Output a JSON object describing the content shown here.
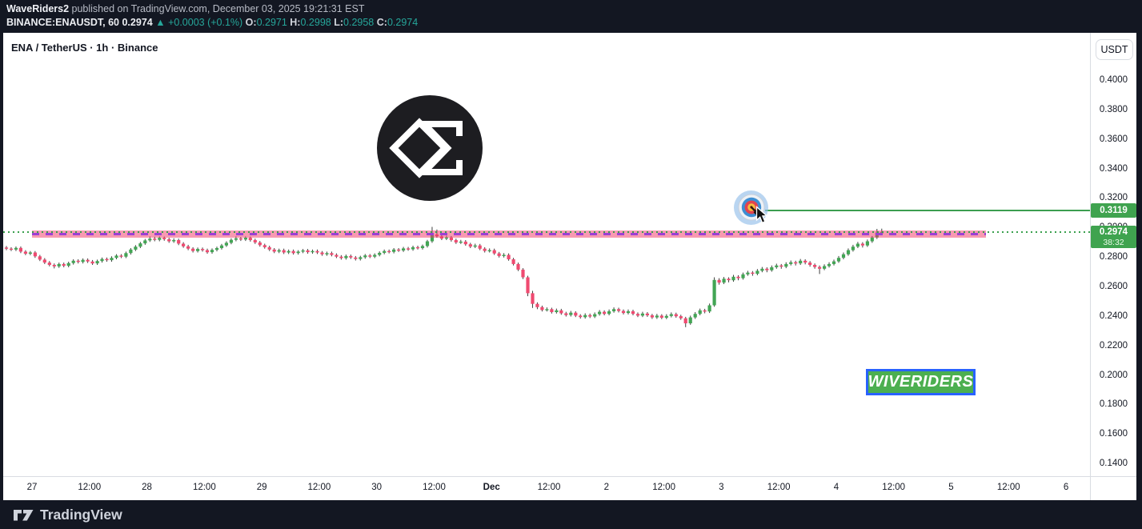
{
  "header": {
    "publisher": "WaveRiders2",
    "publish_info": " published on TradingView.com, December 03, 2025 19:21:31 EST",
    "symbol_line": {
      "symbol": "BINANCE:ENAUSDT, 60",
      "last_price": "0.2974",
      "change_arrow": "▲",
      "change": "+0.0003 (+0.1%)",
      "o_label": "O:",
      "o_value": "0.2971",
      "h_label": "H:",
      "h_value": "0.2998",
      "l_label": "L:",
      "l_value": "0.2958",
      "c_label": "C:",
      "c_value": "0.2974"
    }
  },
  "chart": {
    "title": "ENA / TetherUS · 1h · Binance",
    "watermark_badge": "WIVERIDERS"
  },
  "chart_data": {
    "type": "candlestick",
    "symbol": "ENA/USDT",
    "timeframe": "1h",
    "exchange": "Binance",
    "ylim": [
      0.13,
      0.41
    ],
    "grid": false,
    "colors": {
      "up": "#42a554",
      "down": "#ef4a70",
      "wick": "#3f3f3f"
    },
    "price_axis": {
      "currency": "USDT",
      "ticks": [
        "0.4000",
        "0.3800",
        "0.3600",
        "0.3400",
        "0.3200",
        "0.3000",
        "0.2800",
        "0.2600",
        "0.2400",
        "0.2200",
        "0.2000",
        "0.1800",
        "0.1600",
        "0.1400"
      ],
      "target_badge": "0.3119",
      "price_badge": "0.2974",
      "countdown": "38:32"
    },
    "time_axis": {
      "labels": [
        "27",
        "12:00",
        "28",
        "12:00",
        "29",
        "12:00",
        "30",
        "12:00",
        "Dec",
        "12:00",
        "2",
        "12:00",
        "3",
        "12:00",
        "4",
        "12:00",
        "5",
        "12:00",
        "6"
      ]
    },
    "overlays": {
      "resistance_zone": {
        "from": 0.2937,
        "to": 0.2983,
        "fill": "rgba(242,54,99,0.5)",
        "centerline": 0.296,
        "centerline_color": "#9c3fd4",
        "centerline_style": "dashed"
      },
      "target_line": {
        "price": 0.3119,
        "color": "#3c9e50",
        "style": "solid"
      },
      "last_price_line": {
        "price": 0.2974,
        "color": "#3aa04e",
        "style": "dotted"
      },
      "target_marker": {
        "icon": "dart-target-emoji",
        "price": 0.3119
      }
    },
    "candles": [
      [
        0.287,
        0.288,
        0.2852,
        0.2862
      ],
      [
        0.2862,
        0.2872,
        0.2846,
        0.2856
      ],
      [
        0.2856,
        0.2877,
        0.2846,
        0.2867
      ],
      [
        0.2867,
        0.2877,
        0.2832,
        0.2842
      ],
      [
        0.2842,
        0.2852,
        0.2818,
        0.2828
      ],
      [
        0.2828,
        0.2846,
        0.2818,
        0.2836
      ],
      [
        0.2836,
        0.2846,
        0.28,
        0.281
      ],
      [
        0.281,
        0.282,
        0.2778,
        0.2788
      ],
      [
        0.2788,
        0.2798,
        0.2758,
        0.2768
      ],
      [
        0.2768,
        0.2778,
        0.2742,
        0.2752
      ],
      [
        0.2752,
        0.2762,
        0.2728,
        0.2742
      ],
      [
        0.2742,
        0.2768,
        0.2732,
        0.2758
      ],
      [
        0.2758,
        0.2768,
        0.2736,
        0.2746
      ],
      [
        0.2746,
        0.2774,
        0.2736,
        0.2764
      ],
      [
        0.2764,
        0.279,
        0.2754,
        0.278
      ],
      [
        0.278,
        0.279,
        0.2762,
        0.2772
      ],
      [
        0.2772,
        0.2796,
        0.2762,
        0.2786
      ],
      [
        0.2786,
        0.2796,
        0.2765,
        0.2775
      ],
      [
        0.2775,
        0.2785,
        0.2752,
        0.2762
      ],
      [
        0.2762,
        0.2788,
        0.2752,
        0.2778
      ],
      [
        0.2778,
        0.2802,
        0.2768,
        0.2792
      ],
      [
        0.2792,
        0.2802,
        0.2774,
        0.2784
      ],
      [
        0.2784,
        0.281,
        0.2774,
        0.28
      ],
      [
        0.28,
        0.2825,
        0.279,
        0.2815
      ],
      [
        0.2815,
        0.2825,
        0.2798,
        0.2808
      ],
      [
        0.2808,
        0.2842,
        0.2798,
        0.2832
      ],
      [
        0.2832,
        0.2866,
        0.2822,
        0.2856
      ],
      [
        0.2856,
        0.2886,
        0.2846,
        0.2876
      ],
      [
        0.2876,
        0.2908,
        0.2866,
        0.2898
      ],
      [
        0.2898,
        0.2928,
        0.2888,
        0.2918
      ],
      [
        0.2918,
        0.2945,
        0.2908,
        0.293
      ],
      [
        0.293,
        0.2943,
        0.2912,
        0.2922
      ],
      [
        0.2922,
        0.2945,
        0.2912,
        0.2936
      ],
      [
        0.2936,
        0.2944,
        0.2916,
        0.2926
      ],
      [
        0.2926,
        0.2936,
        0.2902,
        0.2912
      ],
      [
        0.2912,
        0.2932,
        0.2902,
        0.292
      ],
      [
        0.292,
        0.293,
        0.2886,
        0.2896
      ],
      [
        0.2896,
        0.2906,
        0.2868,
        0.2878
      ],
      [
        0.2878,
        0.2888,
        0.2852,
        0.2862
      ],
      [
        0.2862,
        0.2872,
        0.2836,
        0.2846
      ],
      [
        0.2846,
        0.287,
        0.2836,
        0.286
      ],
      [
        0.286,
        0.287,
        0.2842,
        0.2852
      ],
      [
        0.2852,
        0.2862,
        0.2828,
        0.2838
      ],
      [
        0.2838,
        0.2864,
        0.2828,
        0.2854
      ],
      [
        0.2854,
        0.2876,
        0.2844,
        0.2866
      ],
      [
        0.2866,
        0.2894,
        0.2856,
        0.2884
      ],
      [
        0.2884,
        0.2912,
        0.2874,
        0.2902
      ],
      [
        0.2902,
        0.2932,
        0.2892,
        0.2922
      ],
      [
        0.2922,
        0.2945,
        0.2912,
        0.2932
      ],
      [
        0.2932,
        0.2942,
        0.2914,
        0.2924
      ],
      [
        0.2924,
        0.2945,
        0.2914,
        0.2936
      ],
      [
        0.2936,
        0.2944,
        0.291,
        0.292
      ],
      [
        0.292,
        0.293,
        0.2894,
        0.2904
      ],
      [
        0.2904,
        0.2914,
        0.2876,
        0.2886
      ],
      [
        0.2886,
        0.2896,
        0.2862,
        0.2872
      ],
      [
        0.2872,
        0.2882,
        0.2846,
        0.2856
      ],
      [
        0.2856,
        0.2866,
        0.2832,
        0.2842
      ],
      [
        0.2842,
        0.2862,
        0.2832,
        0.2852
      ],
      [
        0.2852,
        0.2862,
        0.2826,
        0.2836
      ],
      [
        0.2836,
        0.2856,
        0.2826,
        0.2846
      ],
      [
        0.2846,
        0.2856,
        0.2822,
        0.2832
      ],
      [
        0.2832,
        0.2852,
        0.2822,
        0.2842
      ],
      [
        0.2842,
        0.286,
        0.2832,
        0.285
      ],
      [
        0.285,
        0.286,
        0.2828,
        0.2838
      ],
      [
        0.2838,
        0.2856,
        0.2828,
        0.2846
      ],
      [
        0.2846,
        0.2856,
        0.2826,
        0.2836
      ],
      [
        0.2836,
        0.2846,
        0.2814,
        0.2824
      ],
      [
        0.2824,
        0.2842,
        0.2814,
        0.2832
      ],
      [
        0.2832,
        0.2842,
        0.281,
        0.282
      ],
      [
        0.282,
        0.283,
        0.2798,
        0.2808
      ],
      [
        0.2808,
        0.2818,
        0.2788,
        0.2798
      ],
      [
        0.2798,
        0.2822,
        0.2788,
        0.2812
      ],
      [
        0.2812,
        0.2822,
        0.2792,
        0.2802
      ],
      [
        0.2802,
        0.2812,
        0.2782,
        0.2792
      ],
      [
        0.2792,
        0.2814,
        0.2782,
        0.2804
      ],
      [
        0.2804,
        0.2826,
        0.2794,
        0.2816
      ],
      [
        0.2816,
        0.2826,
        0.2798,
        0.2808
      ],
      [
        0.2808,
        0.283,
        0.2798,
        0.282
      ],
      [
        0.282,
        0.2844,
        0.281,
        0.2834
      ],
      [
        0.2834,
        0.2856,
        0.2824,
        0.2846
      ],
      [
        0.2846,
        0.2856,
        0.283,
        0.284
      ],
      [
        0.284,
        0.2866,
        0.283,
        0.2856
      ],
      [
        0.2856,
        0.2866,
        0.284,
        0.285
      ],
      [
        0.285,
        0.2874,
        0.284,
        0.2864
      ],
      [
        0.2864,
        0.2874,
        0.2848,
        0.2858
      ],
      [
        0.2858,
        0.2882,
        0.2848,
        0.2872
      ],
      [
        0.2872,
        0.2882,
        0.2856,
        0.2866
      ],
      [
        0.2866,
        0.289,
        0.2856,
        0.288
      ],
      [
        0.288,
        0.2922,
        0.287,
        0.2912
      ],
      [
        0.2912,
        0.301,
        0.2902,
        0.2958
      ],
      [
        0.2958,
        0.2992,
        0.2936,
        0.2946
      ],
      [
        0.2946,
        0.2958,
        0.292,
        0.293
      ],
      [
        0.293,
        0.295,
        0.292,
        0.2938
      ],
      [
        0.2938,
        0.2948,
        0.291,
        0.292
      ],
      [
        0.292,
        0.293,
        0.2894,
        0.2904
      ],
      [
        0.2904,
        0.2922,
        0.2894,
        0.291
      ],
      [
        0.291,
        0.292,
        0.2882,
        0.2892
      ],
      [
        0.2892,
        0.2902,
        0.2866,
        0.2876
      ],
      [
        0.2876,
        0.2896,
        0.2866,
        0.2884
      ],
      [
        0.2884,
        0.2894,
        0.2852,
        0.2862
      ],
      [
        0.2862,
        0.2872,
        0.2836,
        0.2846
      ],
      [
        0.2846,
        0.2864,
        0.2836,
        0.2852
      ],
      [
        0.2852,
        0.2862,
        0.282,
        0.283
      ],
      [
        0.283,
        0.284,
        0.2802,
        0.2812
      ],
      [
        0.2812,
        0.2832,
        0.2802,
        0.282
      ],
      [
        0.282,
        0.283,
        0.278,
        0.279
      ],
      [
        0.279,
        0.28,
        0.2748,
        0.2758
      ],
      [
        0.2758,
        0.2768,
        0.271,
        0.272
      ],
      [
        0.272,
        0.273,
        0.2656,
        0.2668
      ],
      [
        0.2668,
        0.2678,
        0.254,
        0.256
      ],
      [
        0.256,
        0.2576,
        0.246,
        0.2488
      ],
      [
        0.2488,
        0.2498,
        0.2452,
        0.2466
      ],
      [
        0.2466,
        0.2476,
        0.2436,
        0.2446
      ],
      [
        0.2446,
        0.2464,
        0.2436,
        0.2452
      ],
      [
        0.2452,
        0.2462,
        0.2422,
        0.2432
      ],
      [
        0.2432,
        0.2456,
        0.2422,
        0.2444
      ],
      [
        0.2444,
        0.2454,
        0.2414,
        0.2424
      ],
      [
        0.2424,
        0.2434,
        0.2402,
        0.2412
      ],
      [
        0.2412,
        0.244,
        0.2402,
        0.2428
      ],
      [
        0.2428,
        0.2438,
        0.2398,
        0.2408
      ],
      [
        0.2408,
        0.2418,
        0.2388,
        0.2398
      ],
      [
        0.2398,
        0.2424,
        0.2388,
        0.2412
      ],
      [
        0.2412,
        0.2422,
        0.2392,
        0.2402
      ],
      [
        0.2402,
        0.243,
        0.2392,
        0.2418
      ],
      [
        0.2418,
        0.2446,
        0.2408,
        0.2434
      ],
      [
        0.2434,
        0.2444,
        0.241,
        0.242
      ],
      [
        0.242,
        0.245,
        0.241,
        0.2438
      ],
      [
        0.2438,
        0.2464,
        0.2428,
        0.2452
      ],
      [
        0.2452,
        0.2462,
        0.243,
        0.244
      ],
      [
        0.244,
        0.245,
        0.2416,
        0.2426
      ],
      [
        0.2426,
        0.245,
        0.2416,
        0.2438
      ],
      [
        0.2438,
        0.2448,
        0.241,
        0.242
      ],
      [
        0.242,
        0.243,
        0.2398,
        0.2408
      ],
      [
        0.2408,
        0.2434,
        0.2398,
        0.2422
      ],
      [
        0.2422,
        0.2432,
        0.24,
        0.241
      ],
      [
        0.241,
        0.242,
        0.2386,
        0.2396
      ],
      [
        0.2396,
        0.242,
        0.2386,
        0.2408
      ],
      [
        0.2408,
        0.2418,
        0.2384,
        0.2394
      ],
      [
        0.2394,
        0.2418,
        0.2384,
        0.2406
      ],
      [
        0.2406,
        0.243,
        0.2396,
        0.2418
      ],
      [
        0.2418,
        0.2428,
        0.2394,
        0.2404
      ],
      [
        0.2404,
        0.2414,
        0.238,
        0.239
      ],
      [
        0.239,
        0.24,
        0.233,
        0.2356
      ],
      [
        0.2356,
        0.2408,
        0.2346,
        0.2396
      ],
      [
        0.2396,
        0.2432,
        0.2386,
        0.242
      ],
      [
        0.242,
        0.2456,
        0.241,
        0.2444
      ],
      [
        0.2444,
        0.2454,
        0.2424,
        0.2436
      ],
      [
        0.2436,
        0.249,
        0.2426,
        0.2478
      ],
      [
        0.2478,
        0.2668,
        0.2468,
        0.265
      ],
      [
        0.265,
        0.2662,
        0.2618,
        0.2632
      ],
      [
        0.2632,
        0.267,
        0.2622,
        0.2658
      ],
      [
        0.2658,
        0.2668,
        0.2634,
        0.2648
      ],
      [
        0.2648,
        0.2684,
        0.2638,
        0.2672
      ],
      [
        0.2672,
        0.2682,
        0.2648,
        0.2662
      ],
      [
        0.2662,
        0.27,
        0.2652,
        0.2688
      ],
      [
        0.2688,
        0.2712,
        0.2678,
        0.27
      ],
      [
        0.27,
        0.271,
        0.2678,
        0.2692
      ],
      [
        0.2692,
        0.2724,
        0.2682,
        0.2712
      ],
      [
        0.2712,
        0.2738,
        0.2702,
        0.2726
      ],
      [
        0.2726,
        0.2736,
        0.2702,
        0.2716
      ],
      [
        0.2716,
        0.2748,
        0.2706,
        0.2736
      ],
      [
        0.2736,
        0.276,
        0.2726,
        0.2748
      ],
      [
        0.2748,
        0.2758,
        0.2726,
        0.274
      ],
      [
        0.274,
        0.277,
        0.273,
        0.2758
      ],
      [
        0.2758,
        0.2782,
        0.2748,
        0.277
      ],
      [
        0.277,
        0.278,
        0.2748,
        0.2762
      ],
      [
        0.2762,
        0.2792,
        0.2752,
        0.278
      ],
      [
        0.278,
        0.279,
        0.2756,
        0.2768
      ],
      [
        0.2768,
        0.2778,
        0.274,
        0.2752
      ],
      [
        0.2752,
        0.2762,
        0.2726,
        0.2738
      ],
      [
        0.2738,
        0.2748,
        0.269,
        0.2726
      ],
      [
        0.2726,
        0.2756,
        0.2716,
        0.2744
      ],
      [
        0.2744,
        0.277,
        0.2734,
        0.2758
      ],
      [
        0.2758,
        0.2788,
        0.2748,
        0.2776
      ],
      [
        0.2776,
        0.2812,
        0.2766,
        0.28
      ],
      [
        0.28,
        0.2836,
        0.279,
        0.2824
      ],
      [
        0.2824,
        0.2864,
        0.2814,
        0.2852
      ],
      [
        0.2852,
        0.2888,
        0.2842,
        0.2876
      ],
      [
        0.2876,
        0.2908,
        0.2866,
        0.2896
      ],
      [
        0.2896,
        0.2906,
        0.287,
        0.2884
      ],
      [
        0.2884,
        0.2924,
        0.2874,
        0.2912
      ],
      [
        0.2912,
        0.2948,
        0.2902,
        0.2938
      ],
      [
        0.2938,
        0.2996,
        0.2928,
        0.2971
      ],
      [
        0.2971,
        0.2998,
        0.2958,
        0.2974
      ]
    ]
  },
  "footer": {
    "brand": "TradingView"
  }
}
